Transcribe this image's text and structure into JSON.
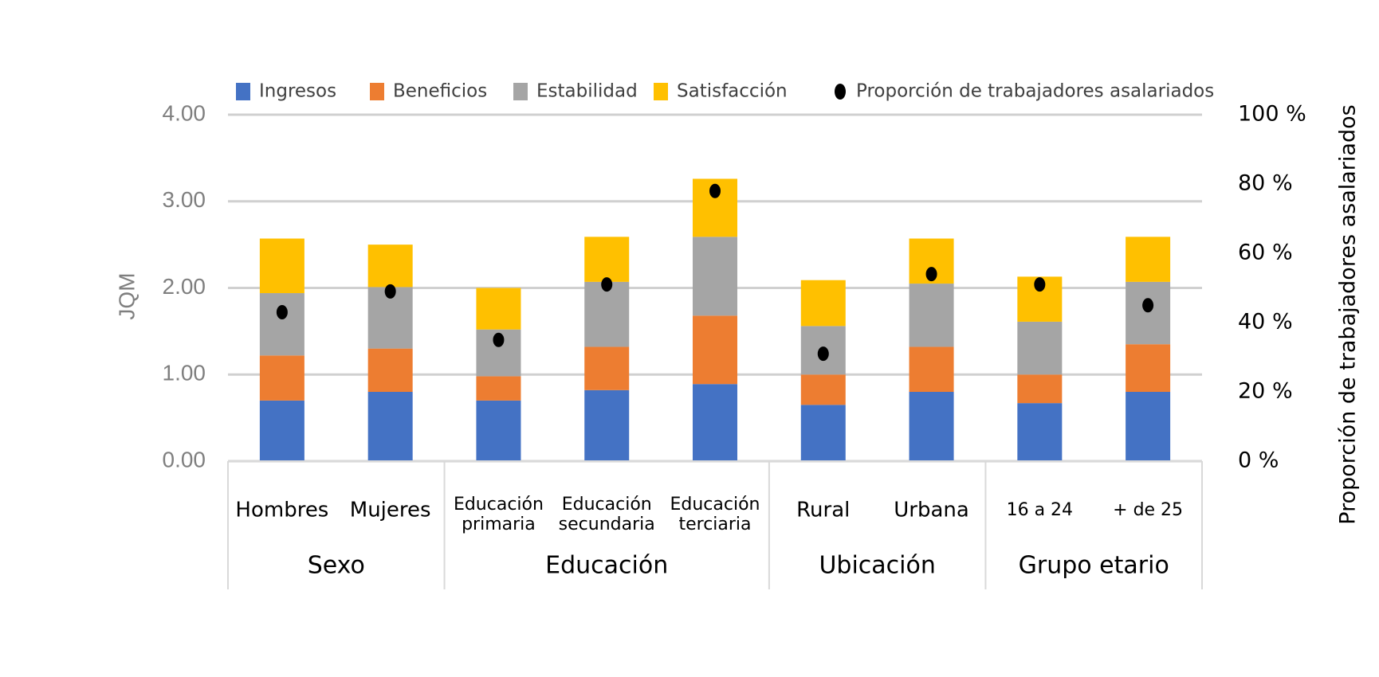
{
  "chart_data": {
    "type": "bar",
    "stacked": true,
    "ylabel": "JQM",
    "y2label": "Proporción de trabajadores asalariados",
    "groups": [
      {
        "name": "Sexo",
        "categories": [
          "Hombres",
          "Mujeres"
        ]
      },
      {
        "name": "Educación",
        "categories": [
          "Educación primaria",
          "Educación secundaria",
          "Educación terciaria"
        ]
      },
      {
        "name": "Ubicación",
        "categories": [
          "Rural",
          "Urbana"
        ]
      },
      {
        "name": "Grupo etario",
        "categories": [
          "16 a 24",
          "+ de 25"
        ]
      }
    ],
    "series": [
      {
        "name": "Ingresos",
        "color": "#4472c4",
        "values": [
          0.7,
          0.8,
          0.7,
          0.82,
          0.89,
          0.65,
          0.8,
          0.67,
          0.8
        ]
      },
      {
        "name": "Beneficios",
        "color": "#ed7d31",
        "values": [
          0.52,
          0.5,
          0.28,
          0.5,
          0.79,
          0.35,
          0.52,
          0.33,
          0.55
        ]
      },
      {
        "name": "Estabilidad",
        "color": "#a5a5a5",
        "values": [
          0.72,
          0.71,
          0.54,
          0.75,
          0.91,
          0.56,
          0.73,
          0.61,
          0.72
        ]
      },
      {
        "name": "Satisfacción",
        "color": "#ffc000",
        "values": [
          0.63,
          0.49,
          0.48,
          0.52,
          0.67,
          0.53,
          0.52,
          0.52,
          0.52
        ]
      },
      {
        "name": "Proporción de trabajadores asalariados",
        "color": "#000000",
        "axis": "y2",
        "values": [
          43,
          49,
          35,
          51,
          78,
          31,
          54,
          51,
          45
        ]
      }
    ],
    "ylim": [
      0,
      4
    ],
    "yticks": [
      {
        "value": 0,
        "label": "0.00"
      },
      {
        "value": 1,
        "label": "1.00"
      },
      {
        "value": 2,
        "label": "2.00"
      },
      {
        "value": 3,
        "label": "3.00"
      },
      {
        "value": 4,
        "label": "4.00"
      }
    ],
    "y2lim": [
      0,
      100
    ],
    "y2ticks": [
      {
        "value": 0,
        "label": "0 %"
      },
      {
        "value": 20,
        "label": "20 %"
      },
      {
        "value": 40,
        "label": "40 %"
      },
      {
        "value": 60,
        "label": "60 %"
      },
      {
        "value": 80,
        "label": "80 %"
      },
      {
        "value": 100,
        "label": "100 %"
      }
    ],
    "grid": true
  }
}
